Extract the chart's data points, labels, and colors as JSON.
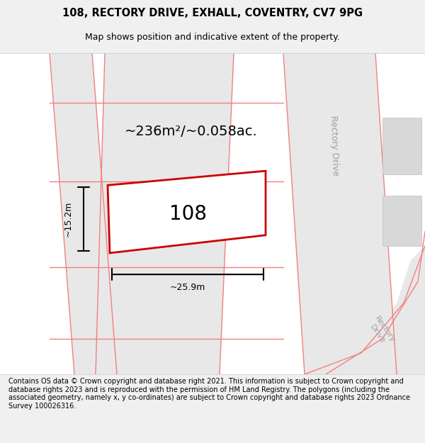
{
  "title": "108, RECTORY DRIVE, EXHALL, COVENTRY, CV7 9PG",
  "subtitle": "Map shows position and indicative extent of the property.",
  "footer": "Contains OS data © Crown copyright and database right 2021. This information is subject to Crown copyright and database rights 2023 and is reproduced with the permission of HM Land Registry. The polygons (including the associated geometry, namely x, y co-ordinates) are subject to Crown copyright and database rights 2023 Ordnance Survey 100026316.",
  "bg_color": "#f5f5f5",
  "map_bg": "#ffffff",
  "plot_color": "#cc0000",
  "plot_fill": "#ffffff",
  "road_fill": "#e8e8e8",
  "road_line": "#f5a0a0",
  "label_108": "108",
  "area_label": "~236m²/~0.058ac.",
  "width_label": "~25.9m",
  "height_label": "~15.2m",
  "rectory_drive_label": "Rectory Drive",
  "rectory_drive_label2": "Rectory\nDrive"
}
